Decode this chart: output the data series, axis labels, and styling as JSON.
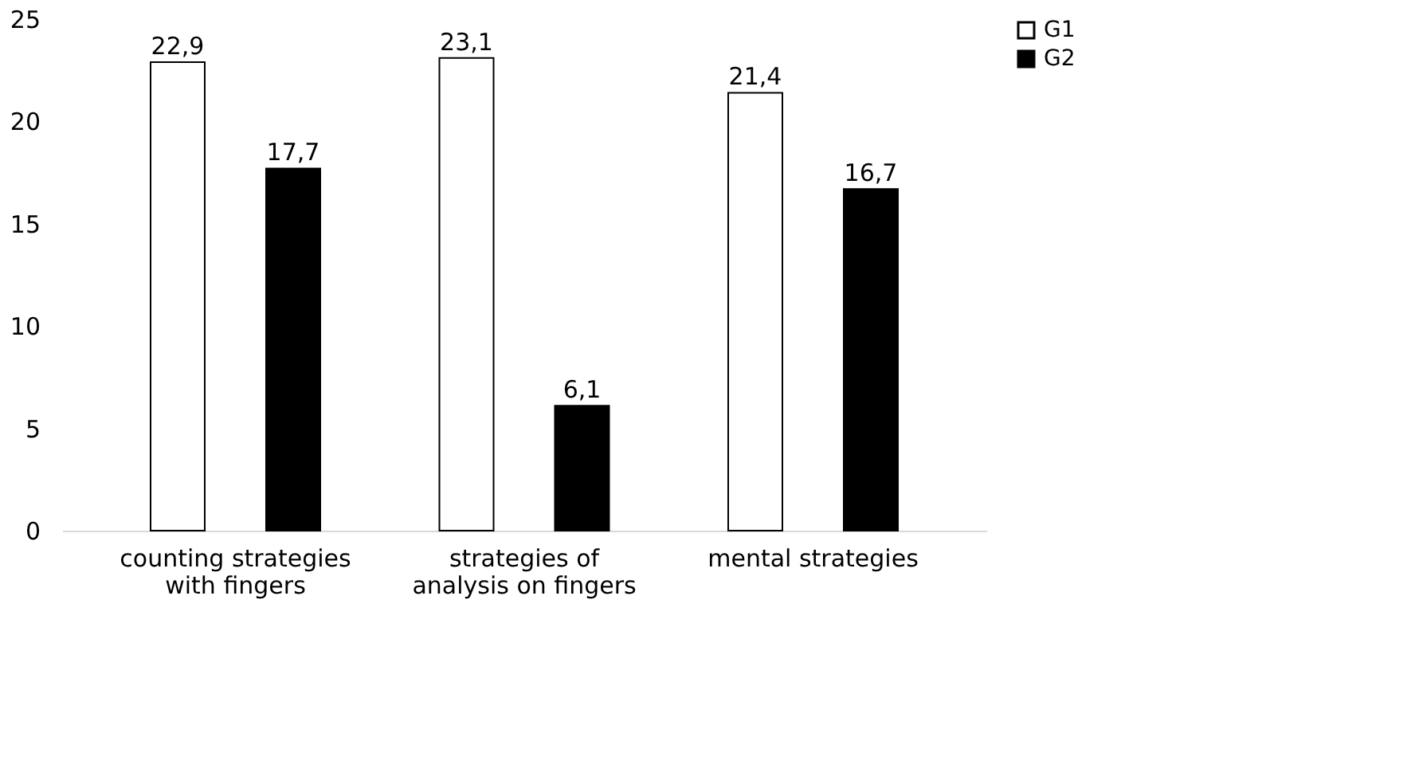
{
  "chart_data": {
    "type": "bar",
    "categories": [
      "counting strategies with fingers",
      "strategies of analysis on fingers",
      "mental strategies"
    ],
    "series": [
      {
        "name": "G1",
        "color": "#ffffff",
        "values": [
          22.9,
          23.1,
          21.4
        ],
        "value_labels": [
          "22,9",
          "23,1",
          "21,4"
        ]
      },
      {
        "name": "G2",
        "color": "#000000",
        "values": [
          17.7,
          6.1,
          16.7
        ],
        "value_labels": [
          "17,7",
          "6,1",
          "16,7"
        ]
      }
    ],
    "ylim": [
      0,
      25
    ],
    "yticks": [
      0,
      5,
      10,
      15,
      20,
      25
    ],
    "grid": false,
    "legend": "right"
  }
}
